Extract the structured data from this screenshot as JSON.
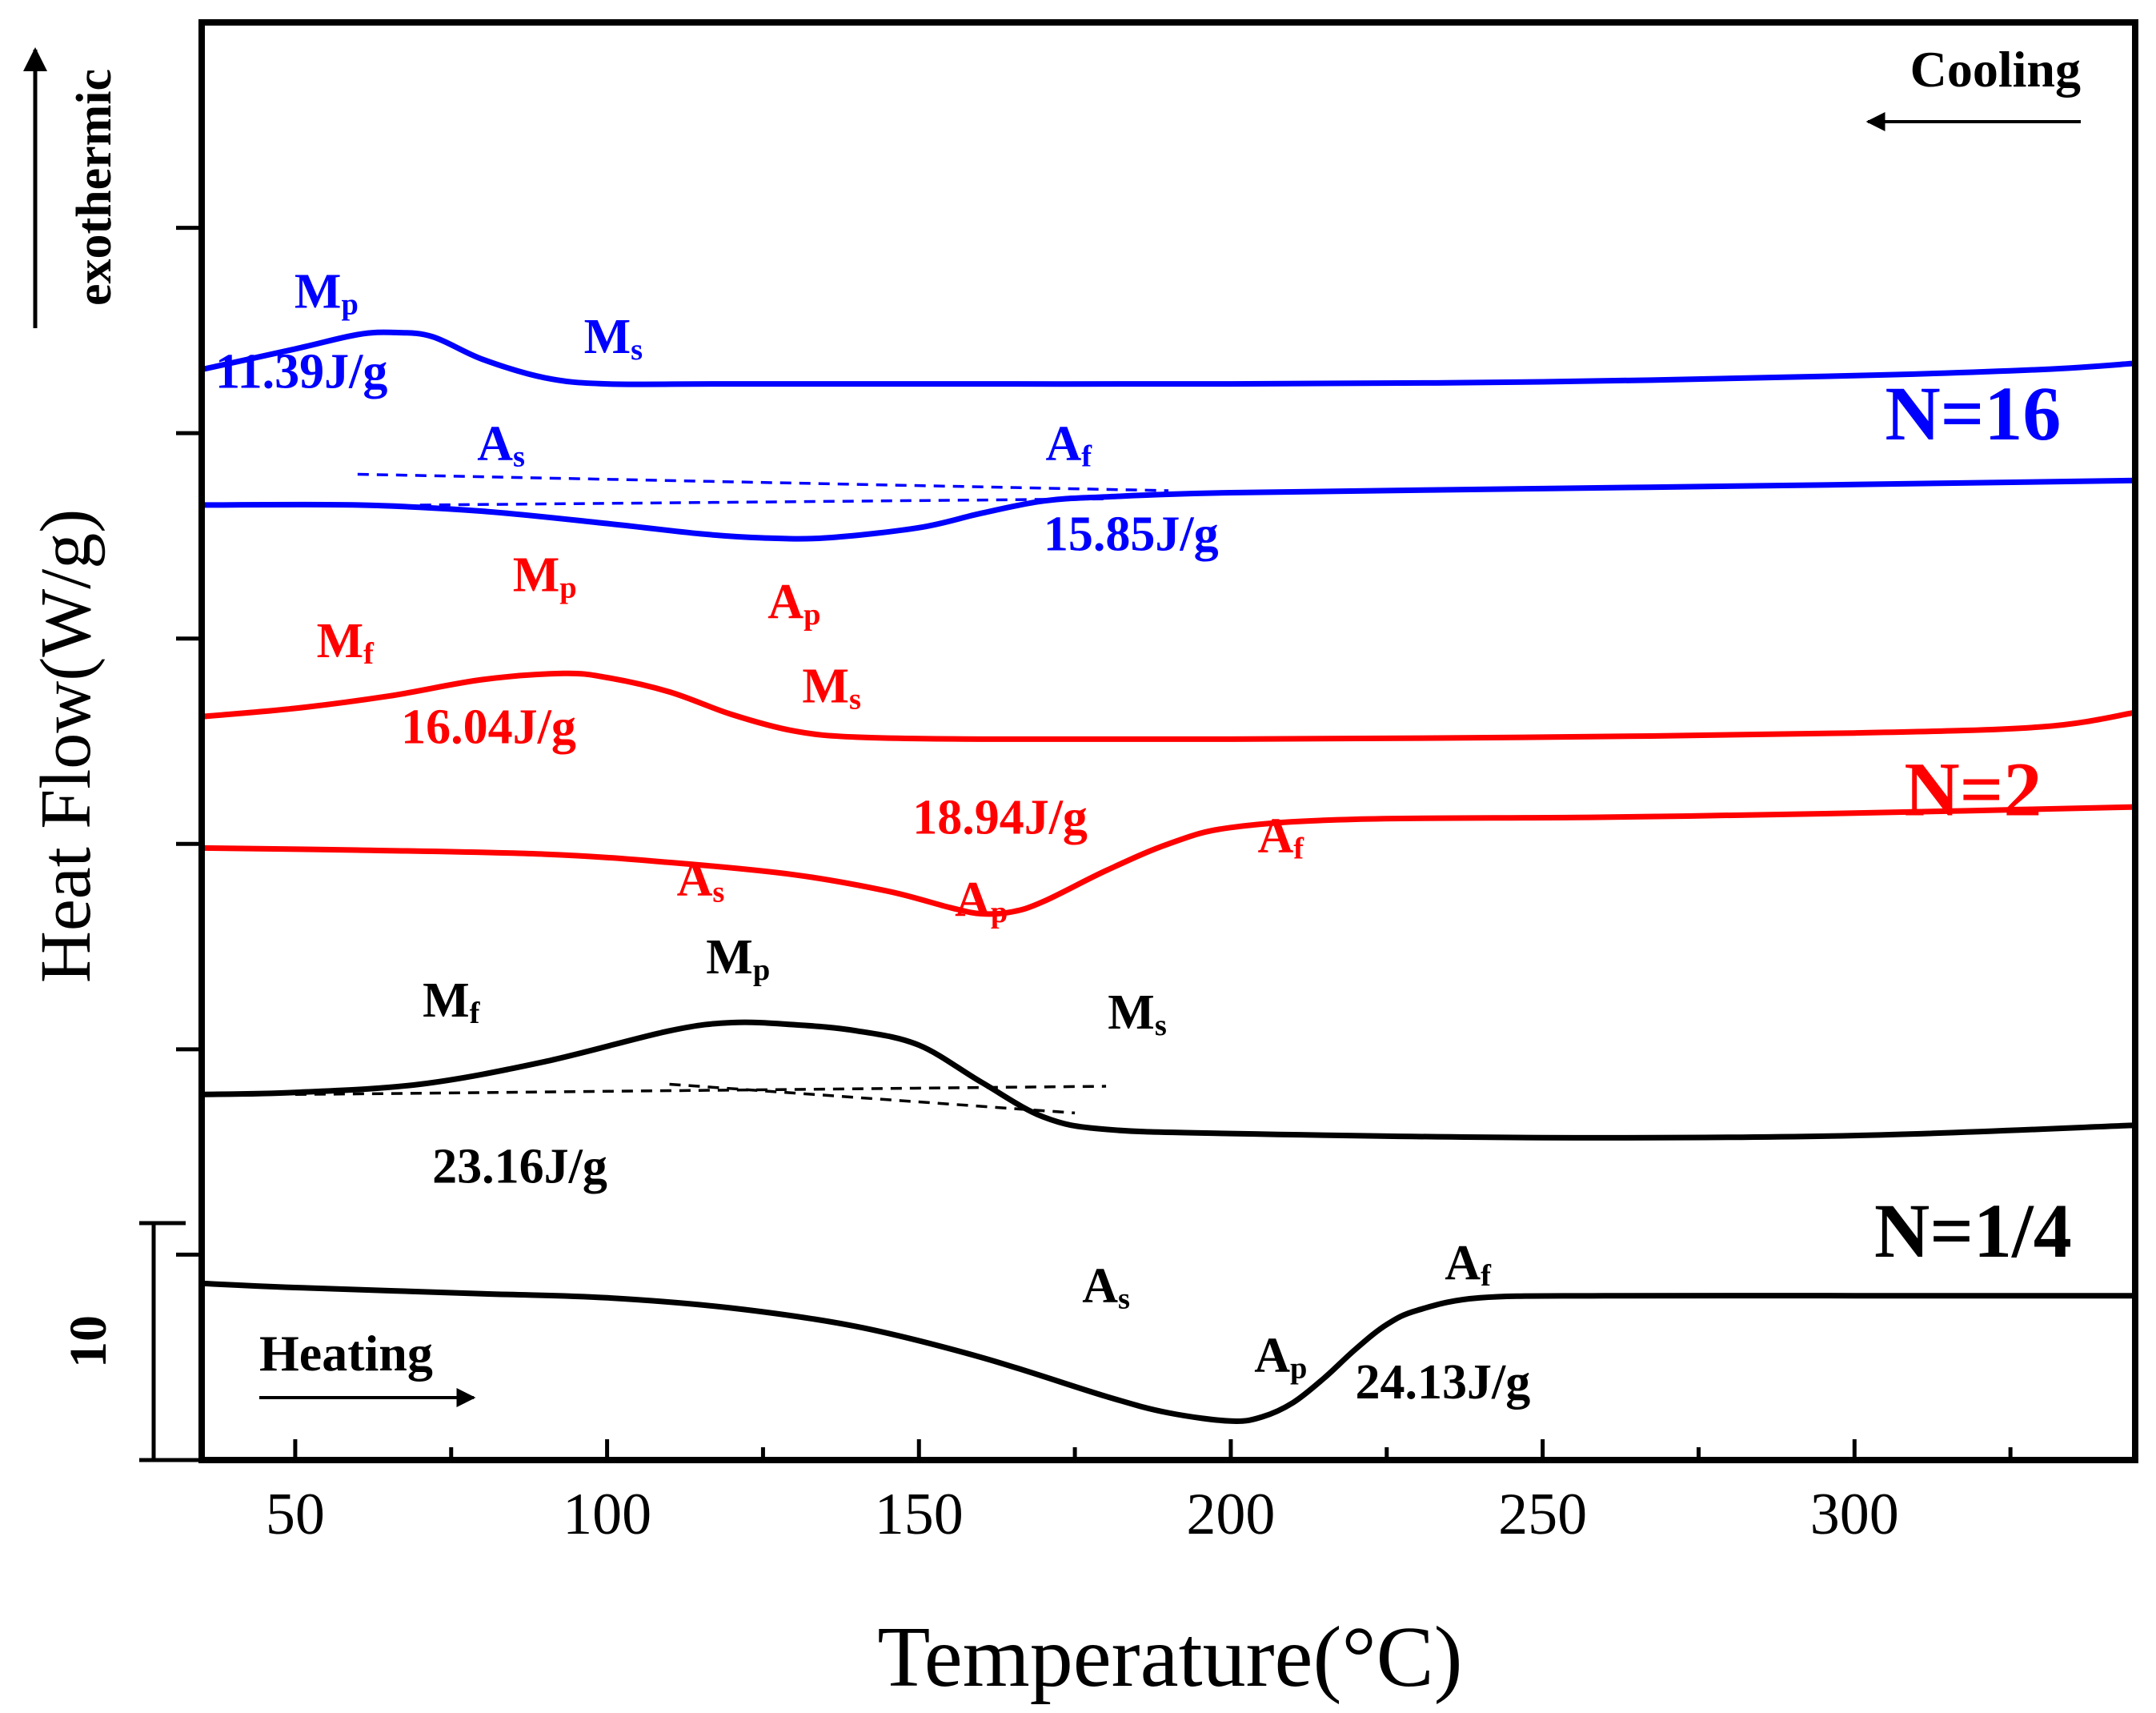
{
  "chart_data": {
    "type": "line",
    "title": "",
    "xlabel": "Temperature(°C)",
    "ylabel": "Heat Flow(W/g)",
    "xlim": [
      35,
      345
    ],
    "x_ticks": [
      50,
      100,
      150,
      200,
      250,
      300
    ],
    "ylim": [
      0,
      70
    ],
    "y_ticks": [
      0,
      10,
      20,
      30,
      40,
      50,
      60
    ],
    "y_scale_bar": {
      "label": "10",
      "value": 10
    },
    "grid": false,
    "exotherm_label": "exothermic",
    "heating_label": "Heating",
    "cooling_label": "Cooling",
    "colors": {
      "N=1/4": "#000000",
      "N=2": "#ff0000",
      "N=16": "#0000ff"
    },
    "series": [
      {
        "name": "N=1/4",
        "segment": "heating",
        "color": "#000000",
        "x": [
          35,
          50,
          80,
          100,
          120,
          140,
          160,
          180,
          190,
          200,
          205,
          210,
          215,
          220,
          225,
          230,
          240,
          260,
          300,
          345
        ],
        "y": [
          8.6,
          8.4,
          8.1,
          7.9,
          7.4,
          6.5,
          5.0,
          3.1,
          2.3,
          1.9,
          2.1,
          2.8,
          4.0,
          5.4,
          6.6,
          7.3,
          7.9,
          8.0,
          8.0,
          8.0
        ]
      },
      {
        "name": "N=1/4",
        "segment": "cooling",
        "color": "#000000",
        "x": [
          35,
          50,
          70,
          90,
          110,
          120,
          130,
          140,
          150,
          160,
          170,
          180,
          200,
          250,
          300,
          345
        ],
        "y": [
          17.8,
          17.9,
          18.3,
          19.4,
          20.9,
          21.3,
          21.2,
          20.9,
          20.2,
          18.4,
          16.7,
          16.1,
          15.9,
          15.7,
          15.8,
          16.3
        ]
      },
      {
        "name": "N=2",
        "segment": "heating",
        "color": "#ff0000",
        "x": [
          35,
          60,
          90,
          110,
          130,
          145,
          155,
          160,
          165,
          170,
          180,
          190,
          200,
          220,
          260,
          300,
          345
        ],
        "y": [
          29.8,
          29.7,
          29.5,
          29.1,
          28.5,
          27.7,
          26.9,
          26.6,
          26.7,
          27.2,
          28.7,
          30.0,
          30.8,
          31.2,
          31.3,
          31.5,
          31.8
        ]
      },
      {
        "name": "N=2",
        "segment": "cooling",
        "color": "#ff0000",
        "x": [
          35,
          50,
          65,
          80,
          93,
          100,
          110,
          120,
          130,
          140,
          160,
          200,
          250,
          300,
          330,
          345
        ],
        "y": [
          36.2,
          36.6,
          37.2,
          38.0,
          38.3,
          38.1,
          37.4,
          36.3,
          35.5,
          35.2,
          35.1,
          35.1,
          35.2,
          35.4,
          35.7,
          36.4
        ]
      },
      {
        "name": "N=16",
        "segment": "heating",
        "color": "#0000ff",
        "x": [
          35,
          60,
          80,
          100,
          115,
          125,
          135,
          150,
          160,
          170,
          180,
          200,
          250,
          300,
          345
        ],
        "y": [
          46.5,
          46.5,
          46.2,
          45.6,
          45.1,
          44.9,
          44.9,
          45.4,
          46.1,
          46.7,
          46.9,
          47.1,
          47.3,
          47.5,
          47.7
        ]
      },
      {
        "name": "N=16",
        "segment": "cooling",
        "color": "#0000ff",
        "x": [
          35,
          50,
          60,
          66,
          72,
          80,
          90,
          100,
          120,
          160,
          200,
          250,
          300,
          330,
          345
        ],
        "y": [
          53.1,
          54.1,
          54.8,
          54.9,
          54.7,
          53.6,
          52.7,
          52.4,
          52.4,
          52.4,
          52.4,
          52.5,
          52.8,
          53.1,
          53.4
        ]
      }
    ],
    "annotations": [
      {
        "text": "Mp",
        "main": "M",
        "sub": "p",
        "color": "#0000ff",
        "x": 55,
        "y": 56.1
      },
      {
        "text": "Ms",
        "main": "M",
        "sub": "s",
        "color": "#0000ff",
        "x": 101,
        "y": 53.9
      },
      {
        "text": "11.39J/g",
        "color": "#0000ff",
        "x": 51,
        "y": 52.2
      },
      {
        "text": "N=16",
        "color": "#0000ff",
        "x": 319,
        "y": 49.7,
        "size": "big"
      },
      {
        "text": "As",
        "main": "A",
        "sub": "s",
        "color": "#0000ff",
        "x": 83,
        "y": 48.7
      },
      {
        "text": "Af",
        "main": "A",
        "sub": "f",
        "color": "#0000ff",
        "x": 174,
        "y": 48.7
      },
      {
        "text": "15.85J/g",
        "color": "#0000ff",
        "x": 184,
        "y": 44.3
      },
      {
        "text": "Mp",
        "main": "M",
        "sub": "p",
        "color": "#ff0000",
        "x": 90,
        "y": 42.3
      },
      {
        "text": "Ap",
        "main": "A",
        "sub": "p",
        "color": "#ff0000",
        "x": 130,
        "y": 41.0
      },
      {
        "text": "Mf",
        "main": "M",
        "sub": "f",
        "color": "#ff0000",
        "x": 58,
        "y": 39.1
      },
      {
        "text": "Ms",
        "main": "M",
        "sub": "s",
        "color": "#ff0000",
        "x": 136,
        "y": 36.9
      },
      {
        "text": "16.04J/g",
        "color": "#ff0000",
        "x": 81,
        "y": 34.9
      },
      {
        "text": "N=2",
        "color": "#ff0000",
        "x": 319,
        "y": 31.4,
        "size": "big"
      },
      {
        "text": "18.94J/g",
        "color": "#ff0000",
        "x": 163,
        "y": 30.5
      },
      {
        "text": "Af",
        "main": "A",
        "sub": "f",
        "color": "#ff0000",
        "x": 208,
        "y": 29.6
      },
      {
        "text": "As",
        "main": "A",
        "sub": "s",
        "color": "#ff0000",
        "x": 115,
        "y": 27.5
      },
      {
        "text": "Ap",
        "main": "A",
        "sub": "p",
        "color": "#ff0000",
        "x": 160,
        "y": 26.5
      },
      {
        "text": "Mp",
        "main": "M",
        "sub": "p",
        "color": "#000000",
        "x": 121,
        "y": 23.7
      },
      {
        "text": "Mf",
        "main": "M",
        "sub": "f",
        "color": "#000000",
        "x": 75,
        "y": 21.6
      },
      {
        "text": "Ms",
        "main": "M",
        "sub": "s",
        "color": "#000000",
        "x": 185,
        "y": 21.0
      },
      {
        "text": "23.16J/g",
        "color": "#000000",
        "x": 86,
        "y": 13.5
      },
      {
        "text": "N=1/4",
        "color": "#000000",
        "x": 319,
        "y": 9.9,
        "size": "big"
      },
      {
        "text": "Af",
        "main": "A",
        "sub": "f",
        "color": "#000000",
        "x": 238,
        "y": 8.8
      },
      {
        "text": "As",
        "main": "A",
        "sub": "s",
        "color": "#000000",
        "x": 180,
        "y": 7.7
      },
      {
        "text": "Ap",
        "main": "A",
        "sub": "p",
        "color": "#000000",
        "x": 208,
        "y": 4.3
      },
      {
        "text": "24.13J/g",
        "color": "#000000",
        "x": 234,
        "y": 3.0
      }
    ],
    "guide_lines": [
      {
        "color": "#0000ff",
        "x": [
          60,
          190
        ],
        "y": [
          48.0,
          47.2
        ]
      },
      {
        "color": "#0000ff",
        "x": [
          70,
          180
        ],
        "y": [
          46.5,
          46.8
        ]
      },
      {
        "color": "#000000",
        "x": [
          50,
          180
        ],
        "y": [
          17.8,
          18.2
        ]
      },
      {
        "color": "#000000",
        "x": [
          110,
          175
        ],
        "y": [
          18.3,
          16.9
        ]
      }
    ]
  }
}
